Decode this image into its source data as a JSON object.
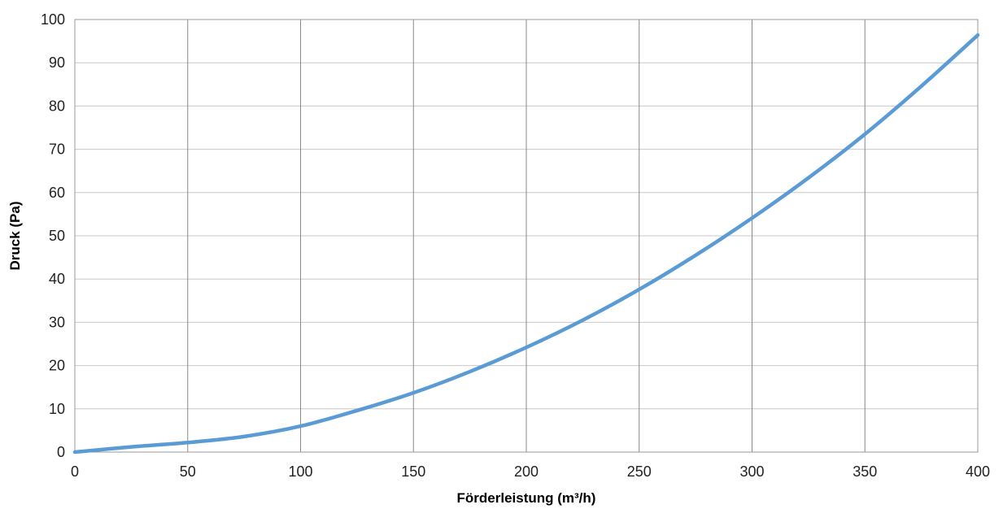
{
  "chart_data": {
    "type": "line",
    "title": "",
    "xlabel": "Förderleistung (m³/h)",
    "ylabel": "Druck  (Pa)",
    "xlim": [
      0,
      400
    ],
    "ylim": [
      0,
      100
    ],
    "x_ticks": [
      "0",
      "50",
      "100",
      "150",
      "200",
      "250",
      "300",
      "350",
      "400"
    ],
    "y_ticks": [
      "0",
      "10",
      "20",
      "30",
      "40",
      "50",
      "60",
      "70",
      "80",
      "90",
      "100"
    ],
    "grid": true,
    "legend": "none",
    "series": [
      {
        "color": "#5b9bd5",
        "x": [
          0,
          25,
          50,
          75,
          100,
          125,
          150,
          175,
          200,
          225,
          250,
          275,
          300,
          325,
          350,
          375,
          400
        ],
        "y": [
          0,
          1.2,
          2.2,
          3.6,
          6,
          9.6,
          13.7,
          18.6,
          24.2,
          30.5,
          37.6,
          45.5,
          54.1,
          63.4,
          73.5,
          84.6,
          96.4
        ]
      }
    ]
  }
}
